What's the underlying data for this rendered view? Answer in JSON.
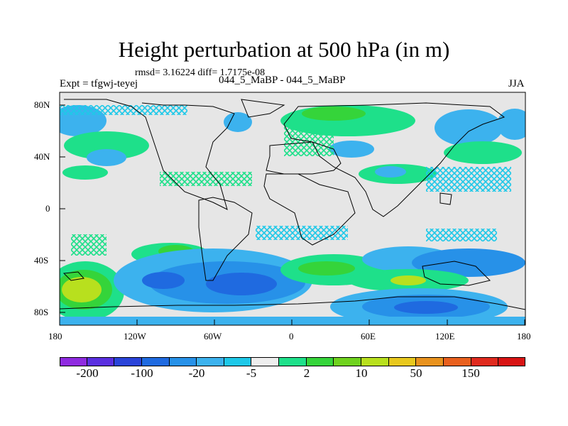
{
  "title": "Height perturbation at 500 hPa (in m)",
  "stats_line": "rmsd= 3.16224 diff= 1.7175e-08",
  "experiment_label": "Expt = tfgwj-teyej",
  "comparison_label": "044_5_MaBP - 044_5_MaBP",
  "season": "JJA",
  "axes": {
    "x_ticks": [
      "180",
      "120W",
      "60W",
      "0",
      "60E",
      "120E",
      "180"
    ],
    "y_ticks": [
      "80N",
      "40N",
      "0",
      "40S",
      "80S"
    ]
  },
  "colorbar": {
    "colors": [
      "#8f2be0",
      "#5a2fe0",
      "#2a44d9",
      "#1f6ae0",
      "#2791e8",
      "#3cb2ee",
      "#1ec8e8",
      "#eeeeee",
      "#1ee08a",
      "#35d43a",
      "#6fd21e",
      "#b8e01e",
      "#e8c81e",
      "#e8921e",
      "#e8601e",
      "#e02a1e",
      "#d81414"
    ],
    "labels": [
      "-200",
      "-100",
      "-20",
      "-5",
      "2",
      "10",
      "50",
      "150"
    ]
  },
  "map_colors": {
    "background": "#e6e6e6",
    "neg_light": "#1ec8e8",
    "neg_mid": "#3cb2ee",
    "neg_strong": "#2791e8",
    "neg_deep": "#1f6ae0",
    "pos_light": "#1ee08a",
    "pos_mid": "#35d43a",
    "pos_strong": "#b8e01e"
  }
}
